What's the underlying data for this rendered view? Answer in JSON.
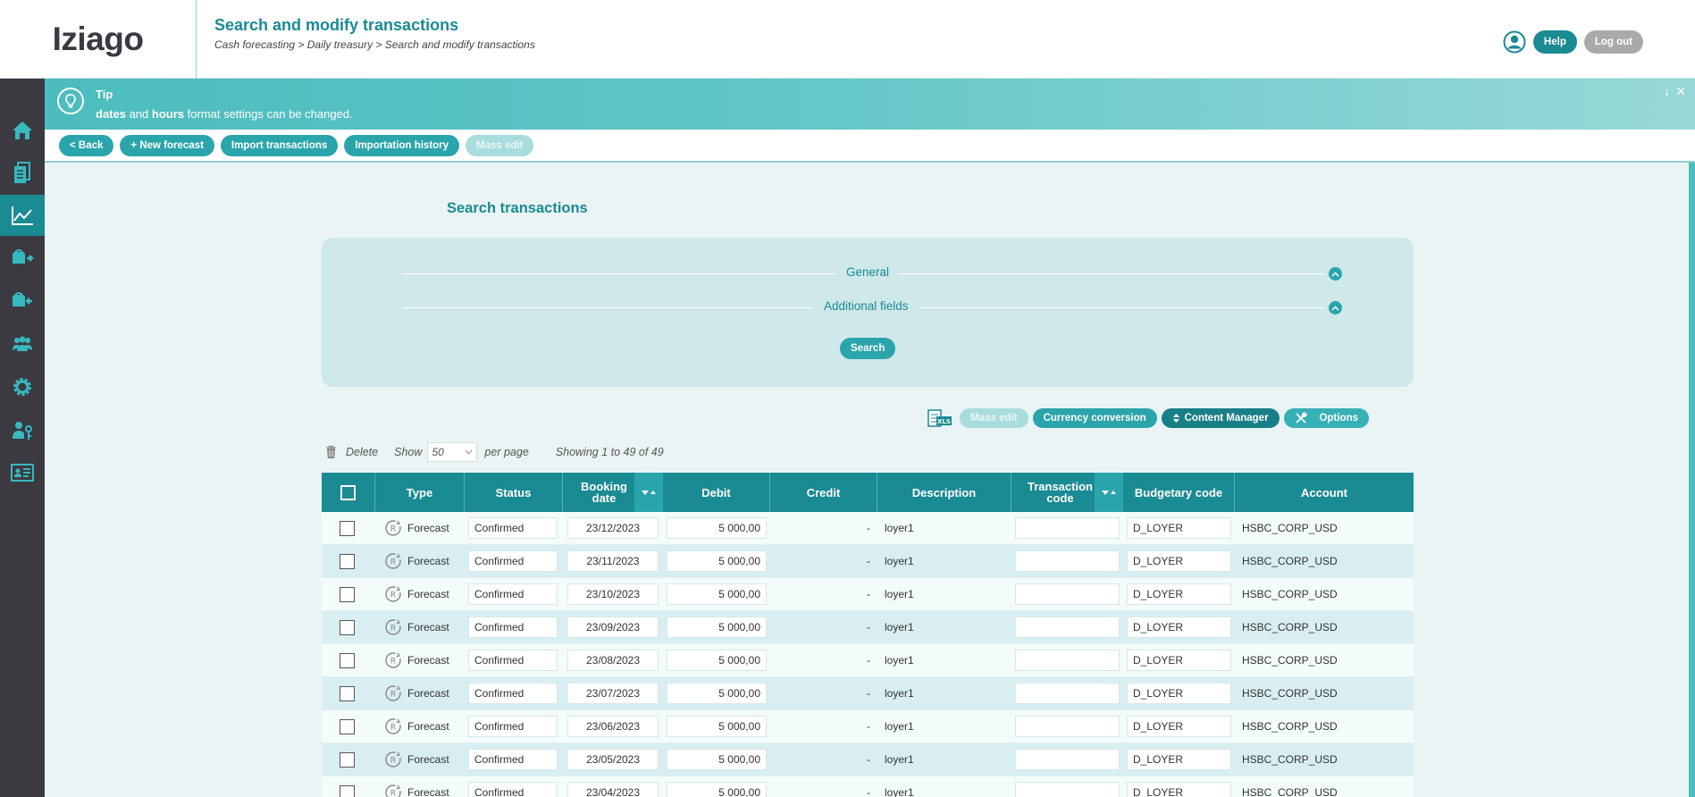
{
  "header": {
    "logo": "Iziago",
    "title": "Search and modify transactions",
    "breadcrumb": "Cash forecasting > Daily treasury > Search and modify transactions",
    "help_label": "Help",
    "logout_label": "Log out"
  },
  "sidebar": {
    "items": [
      {
        "icon": "home-icon"
      },
      {
        "icon": "documents-icon"
      },
      {
        "icon": "chart-icon",
        "active": true
      },
      {
        "icon": "wallet-out-icon"
      },
      {
        "icon": "wallet-in-icon"
      },
      {
        "icon": "users-group-icon"
      },
      {
        "icon": "gear-icon"
      },
      {
        "icon": "user-key-icon"
      },
      {
        "icon": "id-card-icon"
      }
    ]
  },
  "tip": {
    "title": "Tip",
    "text_bold1": "dates",
    "text_mid": " and ",
    "text_bold2": "hours",
    "text_end": " format settings can be changed."
  },
  "toolbar": {
    "back_label": "< Back",
    "new_forecast_label": "+ New forecast",
    "import_label": "Import transactions",
    "history_label": "Importation history",
    "mass_edit_label": "Mass edit"
  },
  "search": {
    "title": "Search transactions",
    "general_label": "General",
    "additional_label": "Additional fields",
    "search_button": "Search"
  },
  "actions": {
    "xls_label": "XLS",
    "mass_edit_label": "Mass edit",
    "currency_label": "Currency conversion",
    "content_manager_label": "Content Manager",
    "options_label": "Options"
  },
  "list": {
    "delete_label": "Delete",
    "show_label": "Show",
    "page_size": "50",
    "per_page_label": "per page",
    "showing_text": "Showing 1 to 49 of 49"
  },
  "table": {
    "columns": {
      "type": "Type",
      "status": "Status",
      "booking_date_1": "Booking",
      "booking_date_2": "date",
      "debit": "Debit",
      "credit": "Credit",
      "description": "Description",
      "transaction_code_1": "Transaction",
      "transaction_code_2": "code",
      "budgetary_code": "Budgetary code",
      "account": "Account"
    },
    "rows": [
      {
        "type": "Forecast",
        "status": "Confirmed",
        "date": "23/12/2023",
        "debit": "5 000,00",
        "credit": "-",
        "description": "loyer1",
        "code": "",
        "budget": "D_LOYER",
        "account": "HSBC_CORP_USD"
      },
      {
        "type": "Forecast",
        "status": "Confirmed",
        "date": "23/11/2023",
        "debit": "5 000,00",
        "credit": "-",
        "description": "loyer1",
        "code": "",
        "budget": "D_LOYER",
        "account": "HSBC_CORP_USD"
      },
      {
        "type": "Forecast",
        "status": "Confirmed",
        "date": "23/10/2023",
        "debit": "5 000,00",
        "credit": "-",
        "description": "loyer1",
        "code": "",
        "budget": "D_LOYER",
        "account": "HSBC_CORP_USD"
      },
      {
        "type": "Forecast",
        "status": "Confirmed",
        "date": "23/09/2023",
        "debit": "5 000,00",
        "credit": "-",
        "description": "loyer1",
        "code": "",
        "budget": "D_LOYER",
        "account": "HSBC_CORP_USD"
      },
      {
        "type": "Forecast",
        "status": "Confirmed",
        "date": "23/08/2023",
        "debit": "5 000,00",
        "credit": "-",
        "description": "loyer1",
        "code": "",
        "budget": "D_LOYER",
        "account": "HSBC_CORP_USD"
      },
      {
        "type": "Forecast",
        "status": "Confirmed",
        "date": "23/07/2023",
        "debit": "5 000,00",
        "credit": "-",
        "description": "loyer1",
        "code": "",
        "budget": "D_LOYER",
        "account": "HSBC_CORP_USD"
      },
      {
        "type": "Forecast",
        "status": "Confirmed",
        "date": "23/06/2023",
        "debit": "5 000,00",
        "credit": "-",
        "description": "loyer1",
        "code": "",
        "budget": "D_LOYER",
        "account": "HSBC_CORP_USD"
      },
      {
        "type": "Forecast",
        "status": "Confirmed",
        "date": "23/05/2023",
        "debit": "5 000,00",
        "credit": "-",
        "description": "loyer1",
        "code": "",
        "budget": "D_LOYER",
        "account": "HSBC_CORP_USD"
      },
      {
        "type": "Forecast",
        "status": "Confirmed",
        "date": "23/04/2023",
        "debit": "5 000,00",
        "credit": "-",
        "description": "loyer1",
        "code": "",
        "budget": "D_LOYER",
        "account": "HSBC_CORP_USD"
      }
    ]
  },
  "colors": {
    "teal_dark": "#1a8a93",
    "teal": "#2aa5ab",
    "sidebar_bg": "#3b3a41"
  }
}
